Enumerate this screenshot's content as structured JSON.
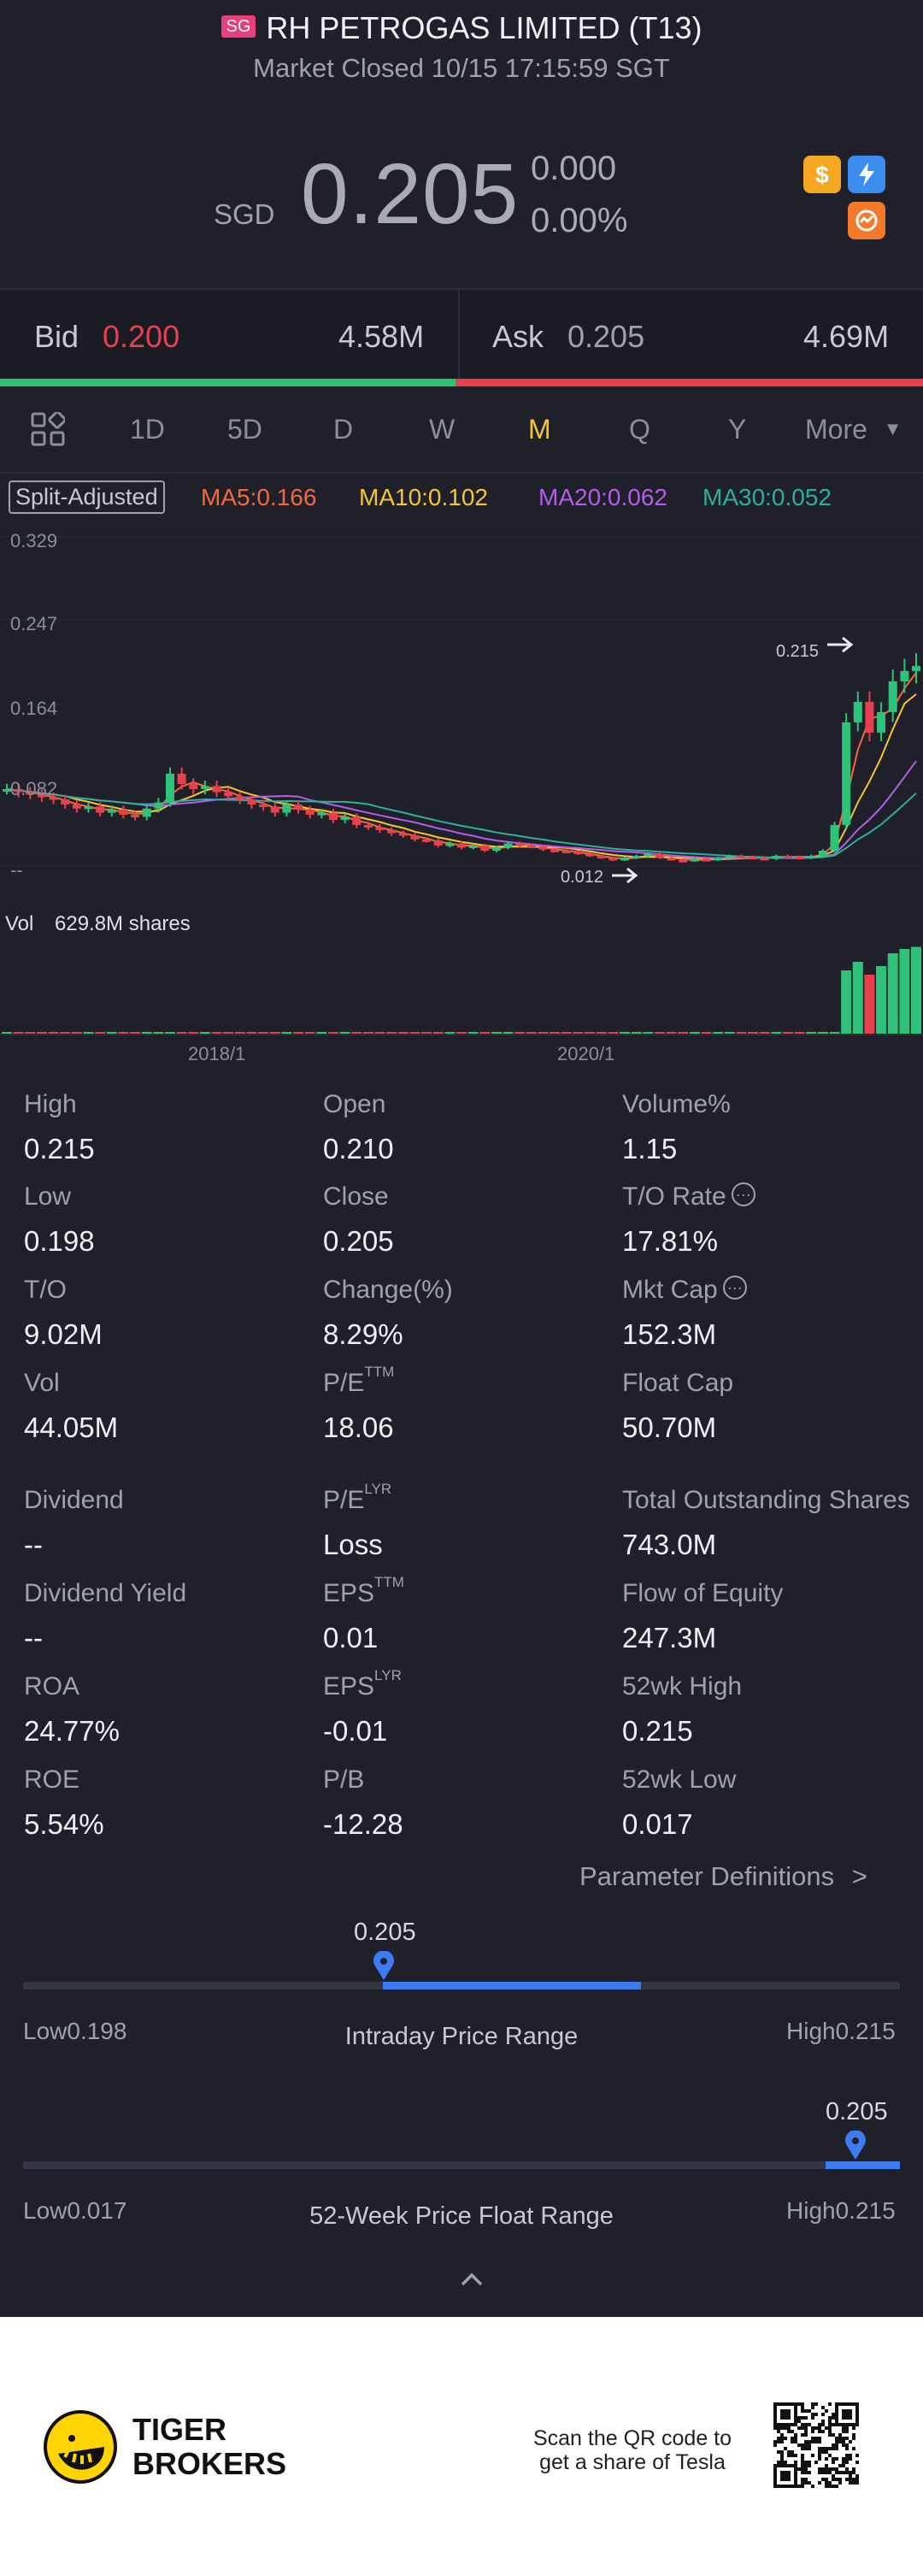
{
  "header": {
    "badge": "SG",
    "title": "RH PETROGAS LIMITED (T13)",
    "status": "Market Closed 10/15 17:15:59 SGT",
    "currency": "SGD",
    "price": "0.205",
    "change": "0.000",
    "change_pct": "0.00%",
    "icons": [
      "dollar-icon",
      "flash-icon",
      "options-icon"
    ]
  },
  "bidask": {
    "bid_label": "Bid",
    "bid_price": "0.200",
    "bid_size": "4.58M",
    "ask_label": "Ask",
    "ask_price": "0.205",
    "ask_size": "4.69M",
    "bid_color": "#e8404f",
    "ask_color": "#9fa1ad"
  },
  "tabs": {
    "items": [
      "1D",
      "5D",
      "D",
      "W",
      "M",
      "Q",
      "Y",
      "More"
    ],
    "active": "M",
    "active_color": "#f5c533"
  },
  "ma": {
    "split_label": "Split-Adjusted",
    "ma5": "MA5:0.166",
    "ma10": "MA10:0.102",
    "ma20": "MA20:0.062",
    "ma30": "MA30:0.052",
    "colors": {
      "ma5": "#f26a3d",
      "ma10": "#f5c533",
      "ma20": "#b45de8",
      "ma30": "#2fae9a"
    }
  },
  "chart_data": {
    "type": "candlestick",
    "y_ticks": [
      "0.329",
      "0.247",
      "0.164",
      "0.082",
      "--"
    ],
    "x_ticks": [
      "2018/1",
      "2020/1"
    ],
    "high_marker": "0.215",
    "low_marker": "0.012",
    "volume_label": "Vol",
    "volume_value": "629.8M shares",
    "ylim": [
      0.0,
      0.329
    ],
    "candles_close": [
      0.085,
      0.082,
      0.08,
      0.077,
      0.075,
      0.07,
      0.066,
      0.068,
      0.062,
      0.065,
      0.06,
      0.058,
      0.066,
      0.072,
      0.1,
      0.09,
      0.085,
      0.088,
      0.082,
      0.078,
      0.075,
      0.07,
      0.068,
      0.062,
      0.07,
      0.065,
      0.06,
      0.062,
      0.055,
      0.058,
      0.05,
      0.048,
      0.045,
      0.042,
      0.04,
      0.036,
      0.035,
      0.03,
      0.032,
      0.028,
      0.03,
      0.025,
      0.028,
      0.032,
      0.03,
      0.029,
      0.026,
      0.025,
      0.024,
      0.022,
      0.02,
      0.018,
      0.016,
      0.018,
      0.02,
      0.022,
      0.018,
      0.016,
      0.015,
      0.017,
      0.016,
      0.018,
      0.02,
      0.019,
      0.018,
      0.017,
      0.02,
      0.019,
      0.018,
      0.02,
      0.025,
      0.05,
      0.15,
      0.17,
      0.14,
      0.16,
      0.19,
      0.2,
      0.205
    ],
    "colors": {
      "up": "#2fc27a",
      "down": "#e8404f"
    }
  },
  "stats": {
    "col1": [
      {
        "label": "High",
        "value": "0.215"
      },
      {
        "label": "Low",
        "value": "0.198"
      },
      {
        "label": "T/O",
        "value": "9.02M"
      },
      {
        "label": "Vol",
        "value": "44.05M"
      },
      {
        "label": "Dividend",
        "value": "--"
      },
      {
        "label": "Dividend Yield",
        "value": "--"
      },
      {
        "label": "ROA",
        "value": "24.77%"
      },
      {
        "label": "ROE",
        "value": "5.54%"
      }
    ],
    "col2": [
      {
        "label": "Open",
        "value": "0.210"
      },
      {
        "label": "Close",
        "value": "0.205"
      },
      {
        "label": "Change(%)",
        "value": "8.29%"
      },
      {
        "label": "P/E",
        "sup": "TTM",
        "value": "18.06"
      },
      {
        "label": "P/E",
        "sup": "LYR",
        "value": "Loss"
      },
      {
        "label": "EPS",
        "sup": "TTM",
        "value": "0.01"
      },
      {
        "label": "EPS",
        "sup": "LYR",
        "value": "-0.01"
      },
      {
        "label": "P/B",
        "value": "-12.28"
      }
    ],
    "col3": [
      {
        "label": "Volume%",
        "value": "1.15"
      },
      {
        "label": "T/O Rate",
        "value": "17.81%"
      },
      {
        "label": "Mkt Cap",
        "value": "152.3M"
      },
      {
        "label": "Float Cap",
        "value": "50.70M"
      },
      {
        "label": "Total Outstanding Shares",
        "value": "743.0M"
      },
      {
        "label": "Flow of Equity",
        "value": "247.3M"
      },
      {
        "label": "52wk High",
        "value": "0.215"
      },
      {
        "label": "52wk Low",
        "value": "0.017"
      }
    ],
    "param_link": "Parameter Definitions"
  },
  "ranges": {
    "intraday": {
      "current": "0.205",
      "low_label": "Low",
      "low": "0.198",
      "high_label": "High",
      "high": "0.215",
      "title": "Intraday Price Range",
      "position": 0.41
    },
    "week52": {
      "current": "0.205",
      "low_label": "Low",
      "low": "0.017",
      "high_label": "High",
      "high": "0.215",
      "title": "52-Week Price Float Range",
      "position": 0.95
    }
  },
  "footer": {
    "brand_line1": "TIGER",
    "brand_line2": "BROKERS",
    "qr_line1": "Scan the QR code to",
    "qr_line2": "get a share of Tesla"
  }
}
